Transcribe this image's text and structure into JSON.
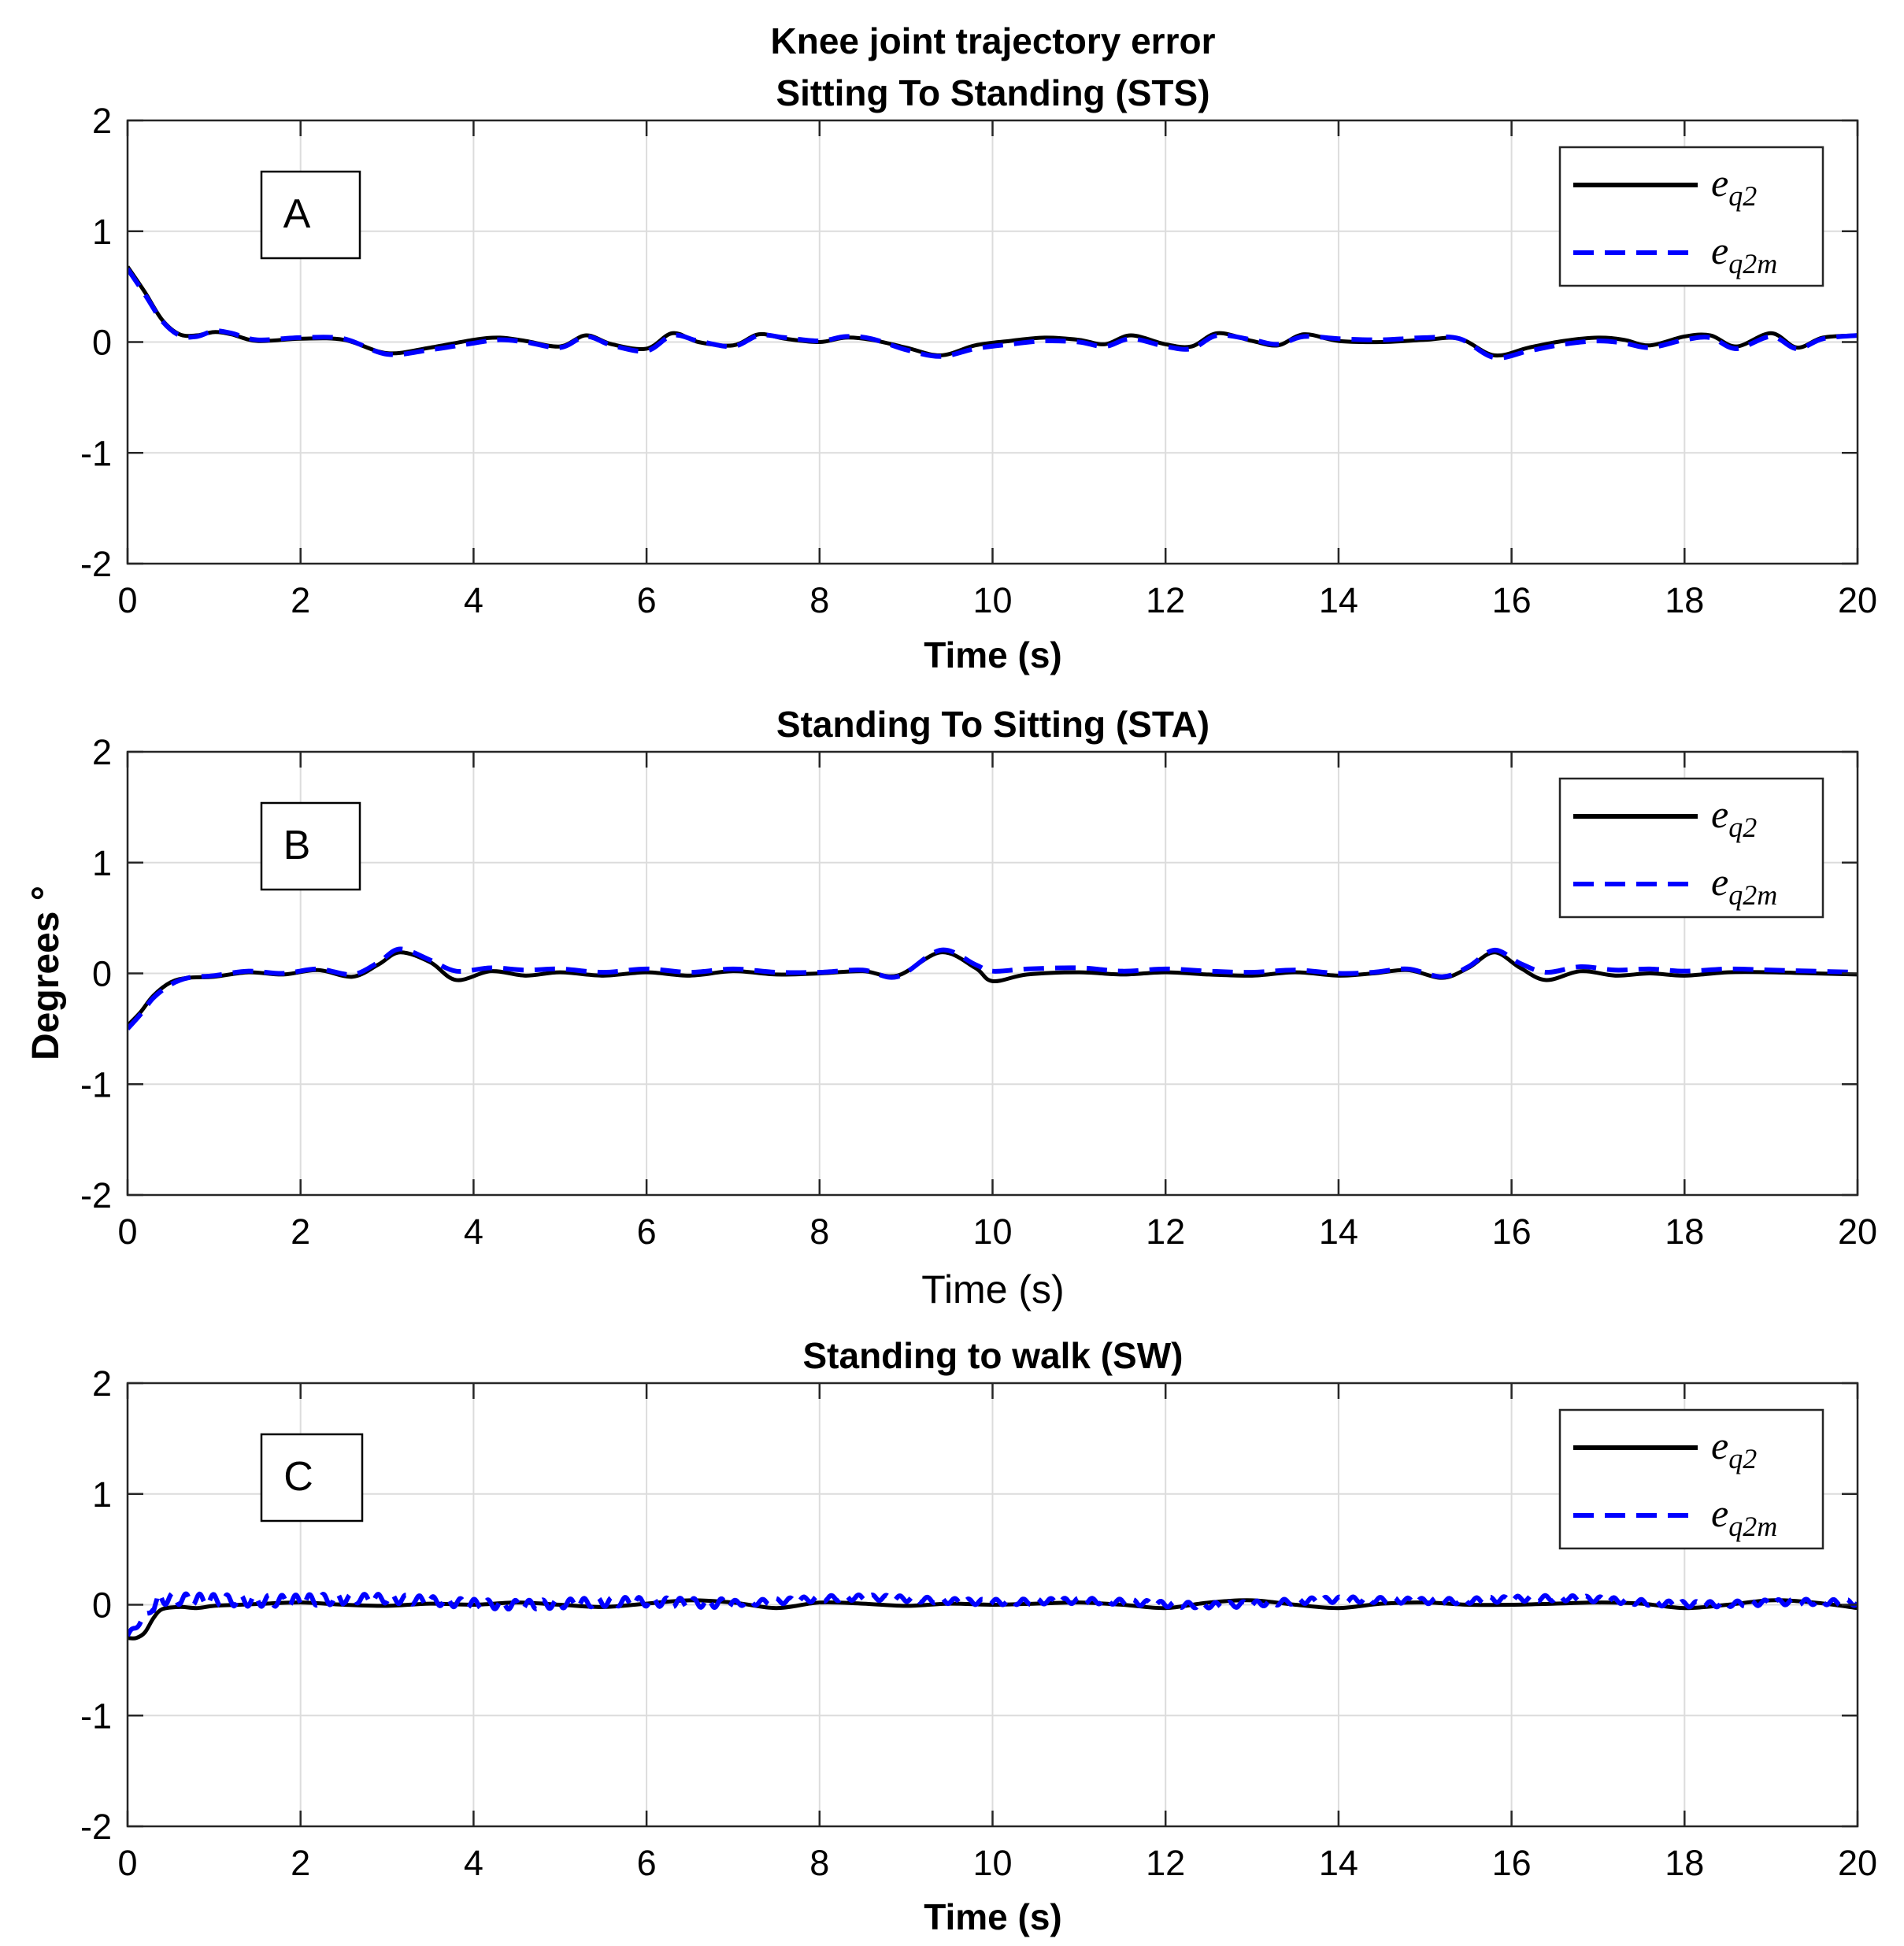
{
  "figure": {
    "title": "Knee joint trajectory error",
    "ylabel": "Degrees °"
  },
  "chart_data": [
    {
      "type": "line",
      "panel": "A",
      "title": "Sitting To Standing (STS)",
      "xlabel": "Time (s)",
      "xlabel_bold": true,
      "xlim": [
        0,
        20
      ],
      "ylim": [
        -2,
        2
      ],
      "xticks": [
        "0",
        "2",
        "4",
        "6",
        "8",
        "10",
        "12",
        "14",
        "16",
        "18",
        "20"
      ],
      "yticks": [
        "2",
        "1",
        "0",
        "-1",
        "-2"
      ],
      "grid": true,
      "legend_position": "top-right",
      "legend": [
        {
          "base": "e",
          "sub": "q2",
          "color": "#000000",
          "style": "solid"
        },
        {
          "base": "e",
          "sub": "q2m",
          "color": "#0000ff",
          "style": "dashed"
        }
      ],
      "series": [
        {
          "name": "e_q2",
          "color": "#000000",
          "x": [
            0,
            0.2,
            0.4,
            0.6,
            0.8,
            1.0,
            1.2,
            1.5,
            2.0,
            2.5,
            3.0,
            3.5,
            4.0,
            4.3,
            4.6,
            5.0,
            5.3,
            5.6,
            6.0,
            6.3,
            6.6,
            7.0,
            7.3,
            7.6,
            8.0,
            8.3,
            8.6,
            9.0,
            9.4,
            9.8,
            10.2,
            10.6,
            11.0,
            11.3,
            11.6,
            12.0,
            12.3,
            12.6,
            13.0,
            13.3,
            13.6,
            14.0,
            14.5,
            15.0,
            15.4,
            15.8,
            16.2,
            16.6,
            17.0,
            17.3,
            17.6,
            18.0,
            18.3,
            18.6,
            19.0,
            19.3,
            19.6,
            20.0
          ],
          "y": [
            0.68,
            0.45,
            0.2,
            0.07,
            0.06,
            0.09,
            0.07,
            0.01,
            0.03,
            0.02,
            -0.1,
            -0.05,
            0.02,
            0.04,
            0.01,
            -0.04,
            0.06,
            -0.02,
            -0.06,
            0.08,
            0.0,
            -0.03,
            0.07,
            0.03,
            0.0,
            0.04,
            0.02,
            -0.05,
            -0.12,
            -0.03,
            0.01,
            0.04,
            0.02,
            -0.02,
            0.06,
            -0.02,
            -0.04,
            0.08,
            0.01,
            -0.03,
            0.07,
            0.01,
            0.0,
            0.02,
            0.03,
            -0.12,
            -0.05,
            0.01,
            0.04,
            0.02,
            -0.03,
            0.05,
            0.06,
            -0.04,
            0.08,
            -0.05,
            0.04,
            0.06
          ]
        },
        {
          "name": "e_q2m",
          "color": "#0000ff",
          "x": [
            0,
            0.2,
            0.4,
            0.6,
            0.8,
            1.0,
            1.2,
            1.5,
            2.0,
            2.5,
            3.0,
            3.5,
            4.0,
            4.3,
            4.6,
            5.0,
            5.3,
            5.6,
            6.0,
            6.3,
            6.6,
            7.0,
            7.3,
            7.6,
            8.0,
            8.3,
            8.6,
            9.0,
            9.4,
            9.8,
            10.2,
            10.6,
            11.0,
            11.3,
            11.6,
            12.0,
            12.3,
            12.6,
            13.0,
            13.3,
            13.6,
            14.0,
            14.5,
            15.0,
            15.4,
            15.8,
            16.2,
            16.6,
            17.0,
            17.3,
            17.6,
            18.0,
            18.3,
            18.6,
            19.0,
            19.3,
            19.6,
            20.0
          ],
          "y": [
            0.66,
            0.43,
            0.19,
            0.06,
            0.05,
            0.1,
            0.08,
            0.02,
            0.04,
            0.03,
            -0.11,
            -0.07,
            -0.01,
            0.02,
            0.0,
            -0.05,
            0.05,
            -0.03,
            -0.08,
            0.06,
            0.01,
            -0.04,
            0.06,
            0.04,
            0.01,
            0.05,
            0.03,
            -0.07,
            -0.13,
            -0.06,
            -0.02,
            0.01,
            0.0,
            -0.04,
            0.03,
            -0.04,
            -0.06,
            0.06,
            0.02,
            -0.02,
            0.05,
            0.03,
            0.02,
            0.04,
            0.03,
            -0.14,
            -0.08,
            -0.02,
            0.01,
            -0.01,
            -0.05,
            0.02,
            0.04,
            -0.06,
            0.05,
            -0.06,
            0.03,
            0.06
          ]
        }
      ]
    },
    {
      "type": "line",
      "panel": "B",
      "title": "Standing To Sitting (STA)",
      "xlabel": "Time (s)",
      "xlabel_bold": false,
      "xlim": [
        0,
        20
      ],
      "ylim": [
        -2,
        2
      ],
      "xticks": [
        "0",
        "2",
        "4",
        "6",
        "8",
        "10",
        "12",
        "14",
        "16",
        "18",
        "20"
      ],
      "yticks": [
        "2",
        "1",
        "0",
        "-1",
        "-2"
      ],
      "grid": true,
      "legend_position": "top-right",
      "legend": [
        {
          "base": "e",
          "sub": "q2",
          "color": "#000000",
          "style": "solid"
        },
        {
          "base": "e",
          "sub": "q2m",
          "color": "#0000ff",
          "style": "dashed"
        }
      ],
      "series": [
        {
          "name": "e_q2",
          "color": "#000000",
          "x": [
            0,
            0.15,
            0.3,
            0.5,
            0.7,
            1.0,
            1.4,
            1.8,
            2.2,
            2.6,
            2.9,
            3.15,
            3.5,
            3.8,
            4.2,
            4.6,
            5.0,
            5.5,
            6.0,
            6.5,
            7.0,
            7.5,
            8.0,
            8.5,
            8.9,
            9.4,
            9.8,
            10.0,
            10.4,
            11.0,
            11.5,
            12.0,
            12.5,
            13.0,
            13.5,
            14.0,
            14.4,
            14.8,
            15.2,
            15.5,
            15.8,
            16.1,
            16.4,
            16.8,
            17.2,
            17.6,
            18.0,
            18.5,
            19.0,
            19.5,
            20.0
          ],
          "y": [
            -0.47,
            -0.35,
            -0.2,
            -0.08,
            -0.04,
            -0.03,
            0.01,
            -0.01,
            0.03,
            -0.03,
            0.08,
            0.19,
            0.1,
            -0.06,
            0.02,
            -0.02,
            0.01,
            -0.02,
            0.01,
            -0.02,
            0.02,
            -0.01,
            0.0,
            0.02,
            -0.02,
            0.19,
            0.05,
            -0.07,
            -0.01,
            0.01,
            -0.01,
            0.01,
            -0.01,
            -0.02,
            0.01,
            -0.02,
            0.0,
            0.03,
            -0.04,
            0.05,
            0.19,
            0.05,
            -0.06,
            0.02,
            -0.02,
            0.0,
            -0.02,
            0.01,
            0.01,
            0.0,
            -0.01
          ]
        },
        {
          "name": "e_q2m",
          "color": "#0000ff",
          "x": [
            0,
            0.15,
            0.3,
            0.5,
            0.7,
            1.0,
            1.4,
            1.8,
            2.2,
            2.6,
            2.9,
            3.15,
            3.5,
            3.8,
            4.2,
            4.6,
            5.0,
            5.5,
            6.0,
            6.5,
            7.0,
            7.5,
            8.0,
            8.5,
            8.9,
            9.4,
            9.8,
            10.0,
            10.4,
            11.0,
            11.5,
            12.0,
            12.5,
            13.0,
            13.5,
            14.0,
            14.4,
            14.8,
            15.2,
            15.5,
            15.8,
            16.1,
            16.4,
            16.8,
            17.2,
            17.6,
            18.0,
            18.5,
            19.0,
            19.5,
            20.0
          ],
          "y": [
            -0.5,
            -0.37,
            -0.22,
            -0.1,
            -0.04,
            -0.02,
            0.02,
            0.0,
            0.04,
            -0.01,
            0.1,
            0.22,
            0.12,
            0.02,
            0.05,
            0.03,
            0.04,
            0.01,
            0.04,
            0.01,
            0.04,
            0.01,
            0.01,
            0.03,
            -0.03,
            0.21,
            0.08,
            0.02,
            0.04,
            0.05,
            0.02,
            0.04,
            0.02,
            0.01,
            0.03,
            0.0,
            0.01,
            0.04,
            -0.03,
            0.06,
            0.21,
            0.09,
            0.01,
            0.06,
            0.03,
            0.04,
            0.02,
            0.04,
            0.03,
            0.02,
            0.01
          ]
        }
      ]
    },
    {
      "type": "line",
      "panel": "C",
      "title": "Standing to walk (SW)",
      "xlabel": "Time (s)",
      "xlabel_bold": true,
      "xlim": [
        0,
        20
      ],
      "ylim": [
        -2,
        2
      ],
      "xticks": [
        "0",
        "2",
        "4",
        "6",
        "8",
        "10",
        "12",
        "14",
        "16",
        "18",
        "20"
      ],
      "yticks": [
        "2",
        "1",
        "0",
        "-1",
        "-2"
      ],
      "grid": true,
      "legend_position": "top-right",
      "legend": [
        {
          "base": "e",
          "sub": "q2",
          "color": "#000000",
          "style": "solid"
        },
        {
          "base": "e",
          "sub": "q2m",
          "color": "#0000ff",
          "style": "dashed"
        }
      ],
      "series": [
        {
          "name": "e_q2",
          "color": "#000000",
          "x": [
            0,
            0.1,
            0.2,
            0.3,
            0.4,
            0.6,
            0.8,
            1.0,
            1.3,
            1.6,
            2.0,
            2.5,
            3.0,
            3.5,
            4.0,
            4.5,
            5.0,
            5.5,
            6.0,
            6.5,
            7.0,
            7.5,
            8.0,
            8.5,
            9.0,
            9.5,
            10.0,
            10.5,
            11.0,
            11.5,
            12.0,
            12.5,
            13.0,
            13.5,
            14.0,
            14.5,
            15.0,
            15.5,
            16.0,
            16.5,
            17.0,
            17.5,
            18.0,
            18.5,
            19.0,
            19.5,
            20.0
          ],
          "y": [
            -0.3,
            -0.3,
            -0.25,
            -0.12,
            -0.04,
            -0.02,
            -0.03,
            -0.01,
            0.0,
            0.01,
            0.02,
            0.0,
            -0.01,
            0.01,
            0.0,
            0.02,
            0.0,
            -0.02,
            0.01,
            0.04,
            0.02,
            -0.03,
            0.02,
            0.01,
            -0.01,
            0.01,
            0.0,
            0.01,
            0.02,
            0.0,
            -0.03,
            0.02,
            0.04,
            0.0,
            -0.03,
            0.01,
            0.02,
            0.0,
            0.0,
            0.01,
            0.02,
            0.01,
            -0.03,
            0.0,
            0.04,
            0.02,
            -0.03
          ]
        },
        {
          "name": "e_q2m",
          "color": "#0000ff",
          "x": [],
          "y": []
        }
      ]
    }
  ]
}
